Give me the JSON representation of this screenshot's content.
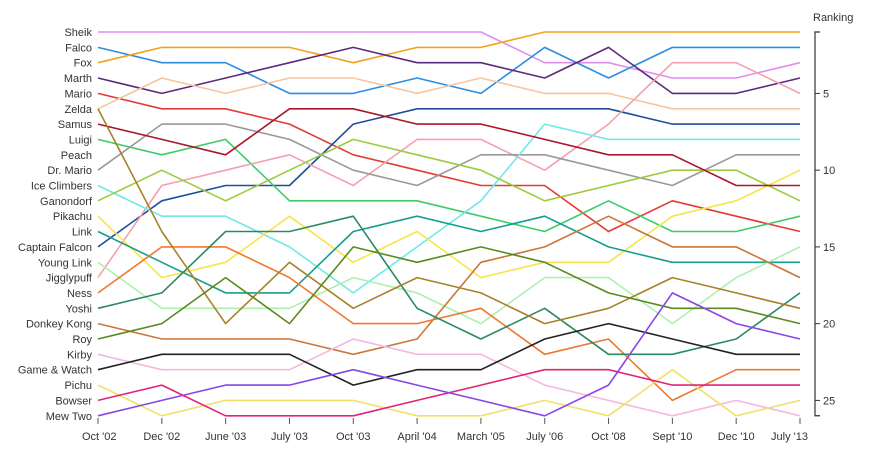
{
  "chart_data": {
    "type": "line",
    "y_axis_title": "Ranking",
    "y_ticks": [
      5,
      10,
      15,
      20,
      25
    ],
    "y_range": [
      0.5,
      26.5
    ],
    "x": [
      "Oct '02",
      "Dec '02",
      "June '03",
      "July '03",
      "Oct '03",
      "April '04",
      "March '05",
      "July '06",
      "Oct '08",
      "Sept '10",
      "Dec '10",
      "July '13"
    ],
    "series": [
      {
        "name": "Sheik",
        "color": "#e38cf0",
        "values": [
          1,
          1,
          1,
          1,
          1,
          1,
          1,
          3,
          3,
          4,
          4,
          3
        ]
      },
      {
        "name": "Falco",
        "color": "#2d8de0",
        "values": [
          2,
          3,
          3,
          5,
          5,
          4,
          5,
          2,
          4,
          2,
          2,
          2
        ]
      },
      {
        "name": "Fox",
        "color": "#f5a21b",
        "values": [
          3,
          2,
          2,
          2,
          3,
          2,
          2,
          1,
          1,
          1,
          1,
          1
        ]
      },
      {
        "name": "Marth",
        "color": "#5c2a7a",
        "values": [
          4,
          5,
          4,
          3,
          2,
          3,
          3,
          4,
          2,
          5,
          5,
          4
        ]
      },
      {
        "name": "Mario",
        "color": "#e53935",
        "values": [
          5,
          6,
          6,
          7,
          9,
          10,
          11,
          11,
          14,
          12,
          13,
          14
        ]
      },
      {
        "name": "Zelda",
        "color": "#f7c59f",
        "values": [
          6,
          4,
          5,
          4,
          4,
          5,
          4,
          5,
          5,
          6,
          6,
          6
        ]
      },
      {
        "name": "Samus",
        "color": "#1f4e9a",
        "values": [
          15,
          12,
          11,
          11,
          7,
          6,
          6,
          6,
          6,
          7,
          7,
          7
        ]
      },
      {
        "name": "Luigi",
        "color": "#3ecb6a",
        "values": [
          8,
          9,
          8,
          12,
          12,
          12,
          13,
          14,
          12,
          14,
          14,
          13
        ]
      },
      {
        "name": "Peach",
        "color": "#f4a0b0",
        "values": [
          17,
          11,
          10,
          9,
          11,
          8,
          8,
          10,
          7,
          3,
          3,
          5
        ]
      },
      {
        "name": "Dr. Mario",
        "color": "#999999",
        "values": [
          10,
          7,
          7,
          8,
          10,
          11,
          9,
          9,
          10,
          11,
          9,
          9
        ]
      },
      {
        "name": "Ice Climbers",
        "color": "#6ee8e8",
        "values": [
          11,
          13,
          13,
          15,
          18,
          15,
          12,
          7,
          8,
          8,
          8,
          8
        ]
      },
      {
        "name": "Ganondorf",
        "color": "#9ccc3d",
        "values": [
          12,
          10,
          12,
          10,
          8,
          9,
          10,
          12,
          11,
          10,
          10,
          12
        ]
      },
      {
        "name": "Pikachu",
        "color": "#f7e54a",
        "values": [
          13,
          17,
          16,
          13,
          16,
          14,
          17,
          16,
          16,
          13,
          12,
          10
        ]
      },
      {
        "name": "Link",
        "color": "#169e8e",
        "values": [
          14,
          16,
          18,
          18,
          14,
          13,
          14,
          13,
          15,
          16,
          16,
          16
        ]
      },
      {
        "name": "Captain Falcon",
        "color": "#a8172c",
        "values": [
          7,
          8,
          9,
          6,
          6,
          7,
          7,
          8,
          9,
          9,
          11,
          11
        ]
      },
      {
        "name": "Young Link",
        "color": "#aef0b0",
        "values": [
          16,
          19,
          19,
          19,
          17,
          18,
          20,
          17,
          17,
          20,
          17,
          15
        ]
      },
      {
        "name": "Jigglypuff",
        "color": "#c9773a",
        "values": [
          20,
          21,
          21,
          21,
          22,
          21,
          16,
          15,
          13,
          15,
          15,
          17
        ]
      },
      {
        "name": "Ness",
        "color": "#f07730",
        "values": [
          18,
          15,
          15,
          17,
          20,
          20,
          19,
          22,
          21,
          25,
          23,
          23
        ]
      },
      {
        "name": "Yoshi",
        "color": "#2a8a60",
        "values": [
          19,
          18,
          14,
          14,
          13,
          19,
          21,
          19,
          22,
          22,
          21,
          18
        ]
      },
      {
        "name": "Donkey Kong",
        "color": "#a8822b",
        "values": [
          6,
          14,
          20,
          16,
          19,
          17,
          18,
          20,
          19,
          17,
          18,
          19
        ]
      },
      {
        "name": "Roy",
        "color": "#5a8a1f",
        "values": [
          21,
          20,
          17,
          20,
          15,
          16,
          15,
          16,
          18,
          19,
          19,
          20
        ]
      },
      {
        "name": "Kirby",
        "color": "#f4b8e0",
        "values": [
          22,
          23,
          23,
          23,
          21,
          22,
          22,
          24,
          25,
          26,
          25,
          26
        ]
      },
      {
        "name": "Game & Watch",
        "color": "#222222",
        "values": [
          23,
          22,
          22,
          22,
          24,
          23,
          23,
          21,
          20,
          21,
          22,
          22
        ]
      },
      {
        "name": "Pichu",
        "color": "#f2e06a",
        "values": [
          24,
          26,
          25,
          25,
          25,
          26,
          26,
          25,
          26,
          23,
          26,
          25
        ]
      },
      {
        "name": "Bowser",
        "color": "#e0247a",
        "values": [
          25,
          24,
          26,
          26,
          26,
          25,
          24,
          23,
          23,
          24,
          24,
          24
        ]
      },
      {
        "name": "Mew Two",
        "color": "#8a44e8",
        "values": [
          26,
          25,
          24,
          24,
          23,
          24,
          25,
          26,
          24,
          18,
          20,
          21
        ]
      }
    ]
  }
}
